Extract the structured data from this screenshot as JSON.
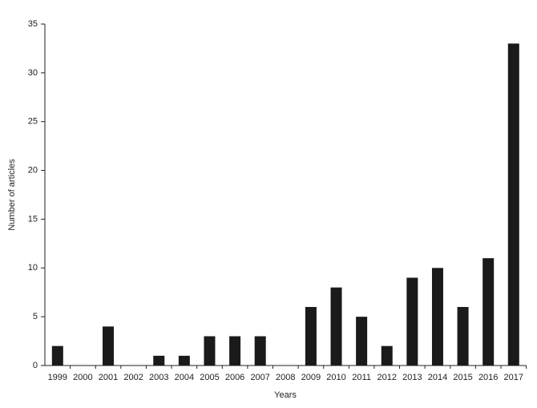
{
  "chart_data": {
    "type": "bar",
    "xlabel": "Years",
    "ylabel": "Number of articles",
    "categories": [
      "1999",
      "2000",
      "2001",
      "2002",
      "2003",
      "2004",
      "2005",
      "2006",
      "2007",
      "2008",
      "2009",
      "2010",
      "2011",
      "2012",
      "2013",
      "2014",
      "2015",
      "2016",
      "2017"
    ],
    "values": [
      2,
      0,
      4,
      0,
      1,
      1,
      3,
      3,
      3,
      0,
      6,
      8,
      5,
      2,
      9,
      10,
      6,
      11,
      33
    ],
    "color": "#1a1a1a",
    "ylim": [
      0,
      35
    ],
    "yticks": [
      0,
      5,
      10,
      15,
      20,
      25,
      30,
      35
    ],
    "grid": false
  }
}
